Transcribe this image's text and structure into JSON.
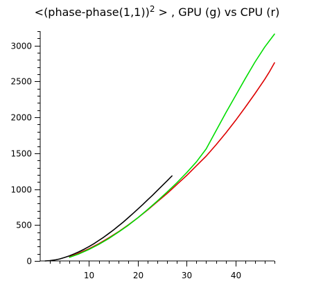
{
  "chart_data": {
    "type": "line",
    "title": {
      "prefix": "<(phase-phase(1,1))",
      "superscript": "2",
      "suffix": " > , GPU (g) vs CPU (r)"
    },
    "xlabel": "",
    "ylabel": "",
    "xlim": [
      0,
      48
    ],
    "ylim": [
      0,
      3200
    ],
    "x_ticks": [
      10,
      20,
      30,
      40
    ],
    "y_ticks": [
      0,
      500,
      1000,
      1500,
      2000,
      2500,
      3000
    ],
    "x_minor_step": 2,
    "y_minor_step": 100,
    "grid": false,
    "legend": "none",
    "series": [
      {
        "color": "#000000",
        "x": [
          1,
          2,
          3,
          4,
          5,
          6,
          7,
          8,
          9,
          10,
          11,
          12,
          13,
          14,
          15,
          16,
          17,
          18,
          19,
          20,
          21,
          22,
          23,
          24,
          25,
          26,
          27
        ],
        "y": [
          0,
          5,
          14,
          28,
          48,
          72,
          100,
          130,
          163,
          200,
          240,
          285,
          330,
          380,
          430,
          485,
          540,
          600,
          660,
          722,
          785,
          850,
          915,
          982,
          1048,
          1116,
          1184
        ]
      },
      {
        "color": "#dd0000",
        "x": [
          6,
          8,
          10,
          12,
          14,
          16,
          18,
          20,
          22,
          24,
          26,
          28,
          30,
          32,
          34,
          36,
          38,
          40,
          42,
          44,
          46,
          47,
          48
        ],
        "y": [
          55,
          110,
          170,
          240,
          320,
          405,
          500,
          600,
          710,
          825,
          940,
          1065,
          1190,
          1325,
          1460,
          1615,
          1780,
          1955,
          2140,
          2330,
          2530,
          2640,
          2760
        ]
      },
      {
        "color": "#00dd00",
        "x": [
          6,
          8,
          10,
          12,
          14,
          16,
          18,
          20,
          22,
          24,
          26,
          28,
          30,
          32,
          34,
          36,
          38,
          40,
          42,
          44,
          46,
          47,
          48
        ],
        "y": [
          50,
          100,
          160,
          230,
          310,
          400,
          495,
          600,
          715,
          835,
          960,
          1090,
          1230,
          1380,
          1560,
          1810,
          2060,
          2300,
          2540,
          2770,
          2980,
          3070,
          3160
        ]
      }
    ]
  }
}
